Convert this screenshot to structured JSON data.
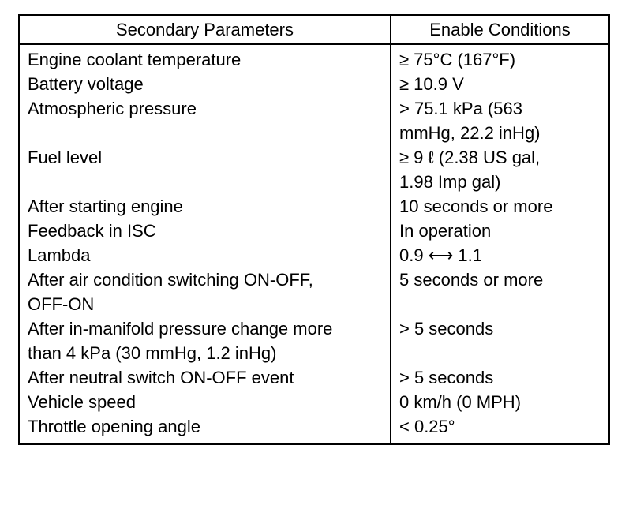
{
  "table": {
    "headers": [
      "Secondary Parameters",
      "Enable Conditions"
    ],
    "rows": [
      {
        "parameter": "Engine coolant temperature",
        "condition": "≥ 75°C (167°F)"
      },
      {
        "parameter": "Battery voltage",
        "condition": "≥ 10.9 V"
      },
      {
        "parameter": "Atmospheric pressure",
        "condition": "> 75.1 kPa (563\nmmHg, 22.2 inHg)"
      },
      {
        "parameter": "Fuel level",
        "condition": "≥ 9 ℓ (2.38 US gal,\n1.98 Imp gal)"
      },
      {
        "parameter": "After starting engine",
        "condition": "10 seconds or more"
      },
      {
        "parameter": "Feedback in ISC",
        "condition": "In operation"
      },
      {
        "parameter": "Lambda",
        "condition": "0.9 ⟷ 1.1"
      },
      {
        "parameter": "After air condition switching ON-OFF,\nOFF-ON",
        "condition": "5 seconds or more"
      },
      {
        "parameter": "After in-manifold pressure change more\nthan 4 kPa (30 mmHg, 1.2 inHg)",
        "condition": "> 5 seconds"
      },
      {
        "parameter": "After neutral switch ON-OFF event",
        "condition": "> 5 seconds"
      },
      {
        "parameter": "Vehicle speed",
        "condition": "0 km/h (0 MPH)"
      },
      {
        "parameter": "Throttle opening angle",
        "condition": "< 0.25°"
      }
    ]
  }
}
